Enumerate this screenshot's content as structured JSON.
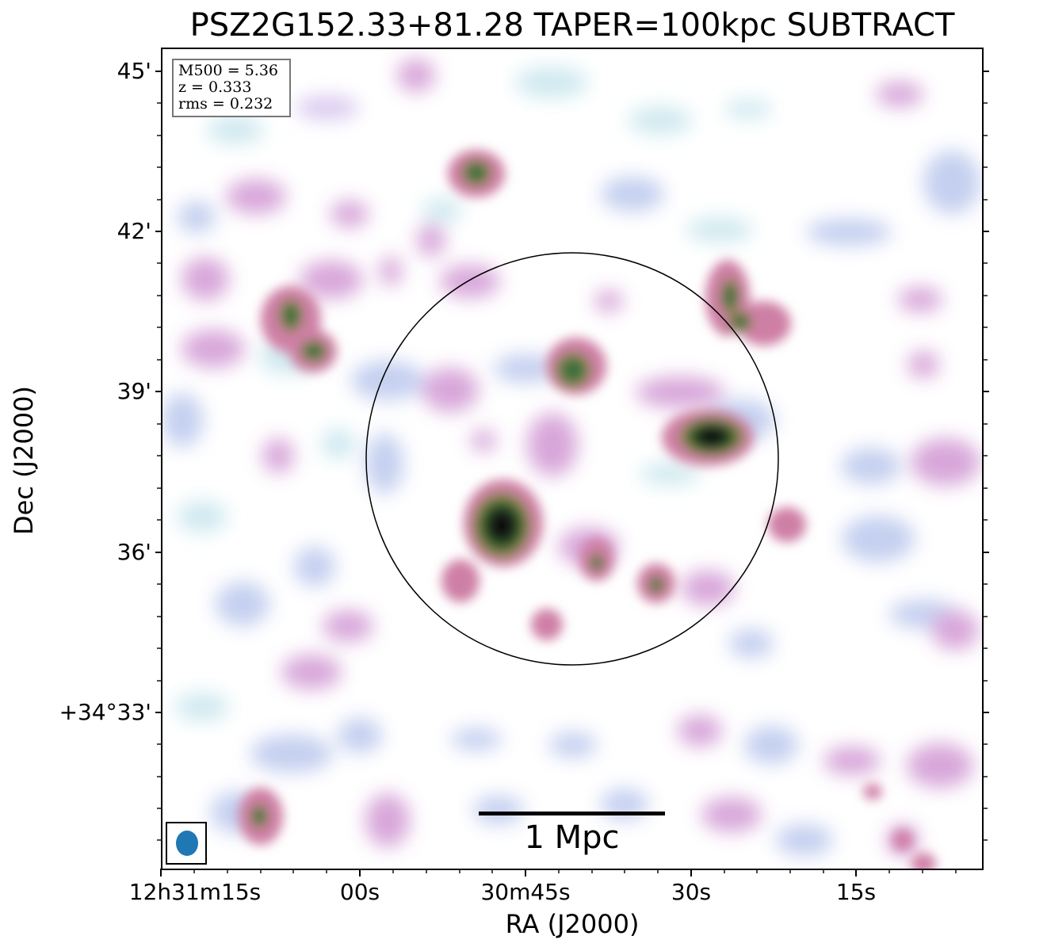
{
  "title": "PSZ2G152.33+81.28 TAPER=100kpc SUBTRACT",
  "axes": {
    "xlabel": "RA (J2000)",
    "ylabel": "Dec (J2000)",
    "xticks": [
      "12h31m15s",
      "00s",
      "30m45s",
      "30s",
      "15s"
    ],
    "yticks": [
      "45'",
      "42'",
      "39'",
      "36'",
      "+34°33'"
    ]
  },
  "info": {
    "m500": "M500 = 5.36",
    "z": "z = 0.333",
    "rms": "rms = 0.232"
  },
  "scalebar": {
    "label": "1 Mpc"
  },
  "colors": {
    "faint": "#cde8ef",
    "low": "#c1cdef",
    "mid": "#d6a2d8",
    "medium": "#cf7fa5",
    "high": "#5d8b3f",
    "peak": "#121212",
    "beam": "#1f77b4"
  },
  "icons": {
    "beam": "beam-ellipse-icon"
  }
}
